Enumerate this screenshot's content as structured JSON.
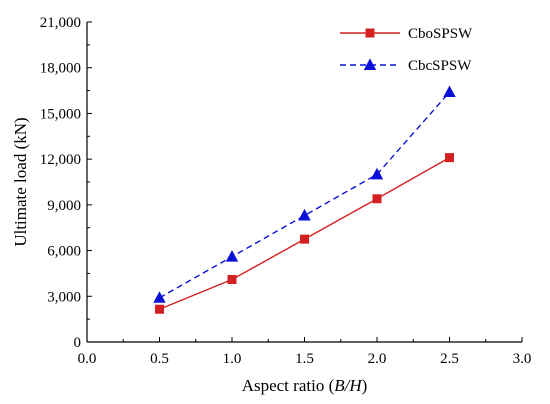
{
  "chart_data": {
    "type": "line",
    "xlabel_main": "Aspect ratio (",
    "xlabel_italic": "B/H",
    "xlabel_end": ")",
    "ylabel": "Ultimate load (kN)",
    "xlim": [
      0.0,
      3.0
    ],
    "ylim": [
      0,
      21000
    ],
    "x_ticks": [
      "0.0",
      "0.5",
      "1.0",
      "1.5",
      "2.0",
      "2.5",
      "3.0"
    ],
    "y_ticks": [
      "0",
      "3,000",
      "6,000",
      "9,000",
      "12,000",
      "15,000",
      "18,000",
      "21,000"
    ],
    "legend_position": "top-right",
    "grid": false,
    "series": [
      {
        "name": "CboSPSW",
        "x": [
          0.5,
          1.0,
          1.5,
          2.0,
          2.5
        ],
        "values": [
          2150,
          4100,
          6750,
          9400,
          12100
        ],
        "color": "#d42020",
        "marker": "square",
        "line_style": "solid"
      },
      {
        "name": "CbcSPSW",
        "x": [
          0.5,
          1.0,
          1.5,
          2.0,
          2.5
        ],
        "values": [
          2900,
          5600,
          8300,
          11000,
          16400
        ],
        "color": "#0a10d8",
        "marker": "triangle",
        "line_style": "dashed"
      }
    ]
  }
}
